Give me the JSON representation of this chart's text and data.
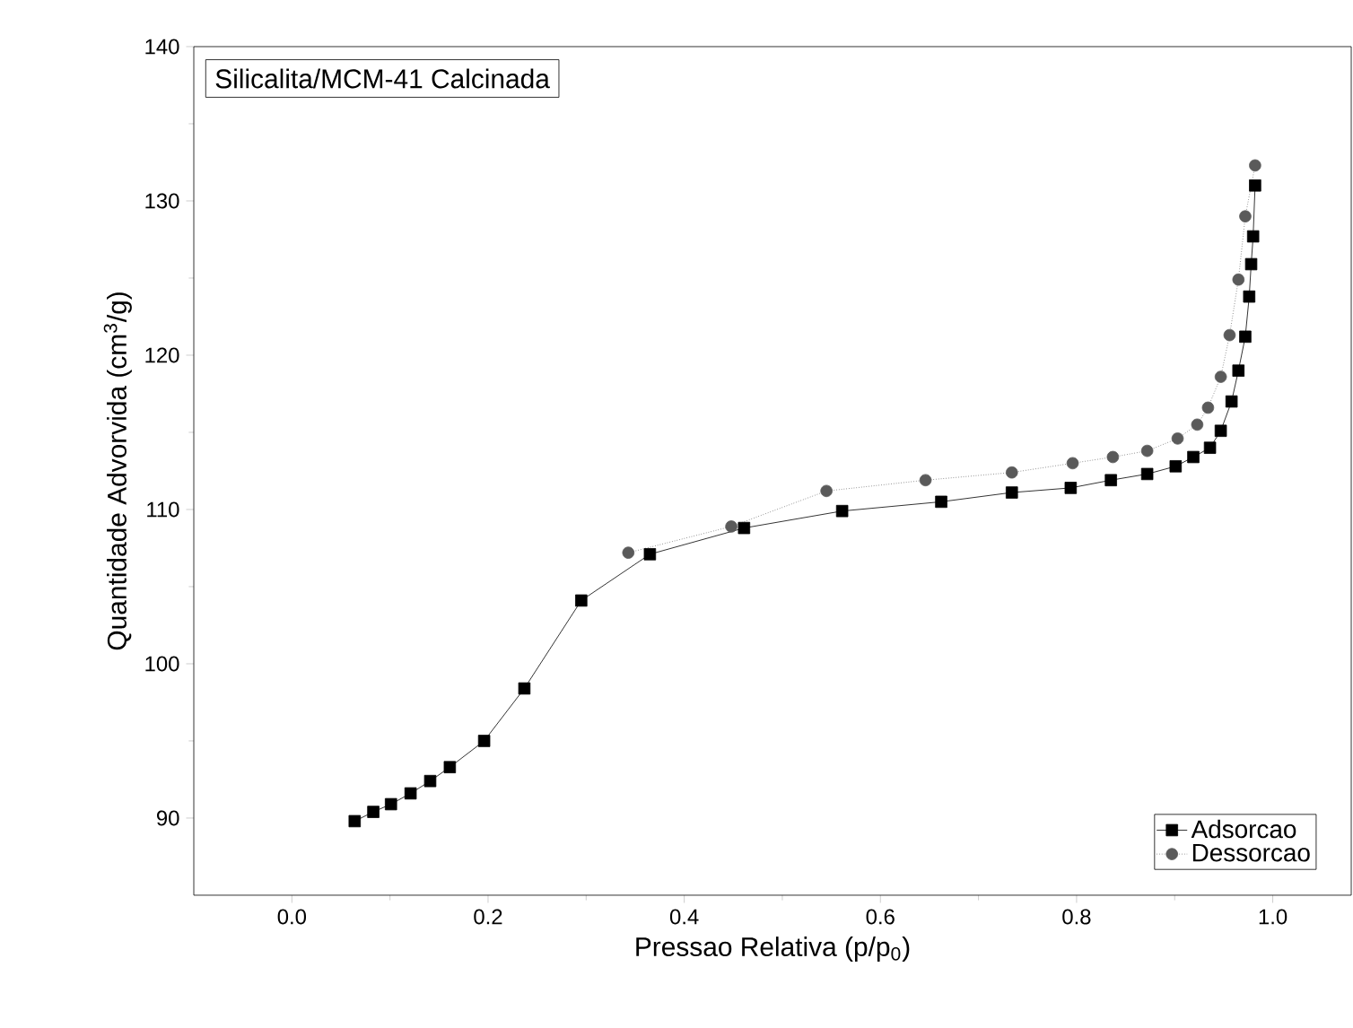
{
  "chart_data": {
    "type": "line",
    "title": "Silicalita/MCM-41 Calcinada",
    "xlabel": "Pressao Relativa (p/p$_{0}$)",
    "ylabel": "Quantidade Advorvida (cm$^{3}$/g)",
    "xlim": [
      -0.1,
      1.08
    ],
    "ylim": [
      85,
      140
    ],
    "xticks": [
      {
        "value": 0,
        "label": "0.0"
      },
      0.2,
      0.4,
      0.6,
      0.8,
      {
        "value": 1,
        "label": "1.0"
      }
    ],
    "yticks": [
      90,
      100,
      110,
      120,
      130,
      140
    ],
    "legend": "bottom right",
    "grid": false,
    "series": [
      {
        "name": "Adsorcao",
        "color": "#000000",
        "marker": "square",
        "line_style": "solid",
        "x": [
          0.064,
          0.083,
          0.101,
          0.121,
          0.141,
          0.161,
          0.196,
          0.237,
          0.295,
          0.365,
          0.461,
          0.561,
          0.662,
          0.734,
          0.794,
          0.835,
          0.872,
          0.901,
          0.919,
          0.936,
          0.947,
          0.958,
          0.965,
          0.972,
          0.976,
          0.978,
          0.98,
          0.982
        ],
        "values": [
          89.8,
          90.4,
          90.9,
          91.6,
          92.4,
          93.3,
          95.0,
          98.4,
          104.1,
          107.1,
          108.8,
          109.9,
          110.5,
          111.1,
          111.4,
          111.9,
          112.3,
          112.8,
          113.4,
          114.0,
          115.1,
          117.0,
          119.0,
          121.2,
          123.8,
          125.9,
          127.7,
          131.0
        ]
      },
      {
        "name": "Dessorcao",
        "color": "#5a5a5a",
        "marker": "circle",
        "line_style": "dotted",
        "x": [
          0.343,
          0.448,
          0.545,
          0.646,
          0.734,
          0.796,
          0.837,
          0.872,
          0.903,
          0.923,
          0.934,
          0.947,
          0.956,
          0.965,
          0.972,
          0.982
        ],
        "values": [
          107.2,
          108.9,
          111.2,
          111.9,
          112.4,
          113.0,
          113.4,
          113.8,
          114.6,
          115.5,
          116.6,
          118.6,
          121.3,
          124.9,
          129.0,
          132.3
        ]
      }
    ]
  }
}
